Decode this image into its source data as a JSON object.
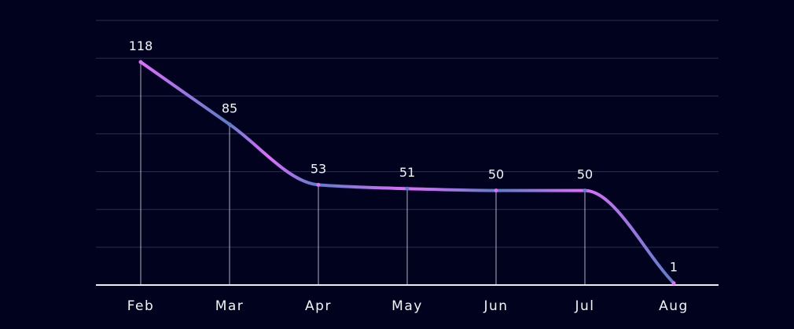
{
  "chart_data": {
    "type": "line",
    "categories": [
      "Feb",
      "Mar",
      "Apr",
      "May",
      "Jun",
      "Jul",
      "Aug"
    ],
    "series": [
      {
        "values": [
          118,
          85,
          53,
          51,
          50,
          50,
          1
        ]
      }
    ],
    "data_labels": [
      "118",
      "85",
      "53",
      "51",
      "50",
      "50",
      "1"
    ],
    "ylim": [
      0,
      140
    ],
    "grid": true,
    "smooth": true,
    "colors": {
      "background": "#01031e",
      "grid": "#2a2f4e",
      "line_pink": "#e26bff",
      "line_blue": "#5c7ec9",
      "text": "#f2f4fb",
      "baseline": "#e9edf7"
    }
  }
}
